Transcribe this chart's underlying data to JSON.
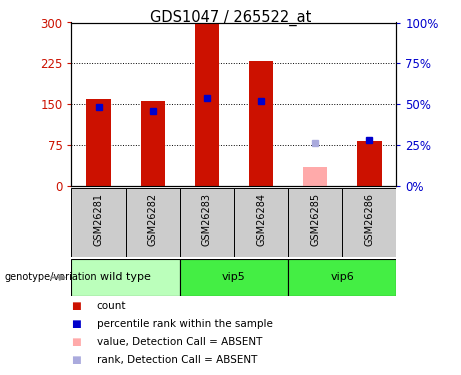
{
  "title": "GDS1047 / 265522_at",
  "samples": [
    "GSM26281",
    "GSM26282",
    "GSM26283",
    "GSM26284",
    "GSM26285",
    "GSM26286"
  ],
  "group_boundaries": [
    {
      "name": "wild type",
      "start": 0,
      "end": 2,
      "color": "#bbffbb"
    },
    {
      "name": "vip5",
      "start": 2,
      "end": 4,
      "color": "#44ee44"
    },
    {
      "name": "vip6",
      "start": 4,
      "end": 6,
      "color": "#44ee44"
    }
  ],
  "bar_color_present": "#cc1100",
  "bar_color_absent": "#ffaaaa",
  "rank_color_present": "#0000cc",
  "rank_color_absent": "#aaaadd",
  "counts": [
    160,
    155,
    297,
    230,
    null,
    82
  ],
  "counts_absent": [
    null,
    null,
    null,
    null,
    35,
    null
  ],
  "ranks_present": [
    48,
    46,
    54,
    52,
    null,
    28
  ],
  "ranks_absent": [
    null,
    null,
    null,
    null,
    26,
    null
  ],
  "ylim_left": [
    0,
    300
  ],
  "ylim_right": [
    0,
    100
  ],
  "yticks_left": [
    0,
    75,
    150,
    225,
    300
  ],
  "yticks_right": [
    0,
    25,
    50,
    75,
    100
  ],
  "yticklabels_left": [
    "0",
    "75",
    "150",
    "225",
    "300"
  ],
  "yticklabels_right": [
    "0%",
    "25%",
    "50%",
    "75%",
    "100%"
  ],
  "color_left": "#cc1100",
  "color_right": "#0000cc",
  "sample_row_color": "#cccccc",
  "bar_width": 0.45,
  "legend_items": [
    {
      "label": "count",
      "color": "#cc1100"
    },
    {
      "label": "percentile rank within the sample",
      "color": "#0000cc"
    },
    {
      "label": "value, Detection Call = ABSENT",
      "color": "#ffaaaa"
    },
    {
      "label": "rank, Detection Call = ABSENT",
      "color": "#aaaadd"
    }
  ],
  "genotype_label": "genotype/variation"
}
